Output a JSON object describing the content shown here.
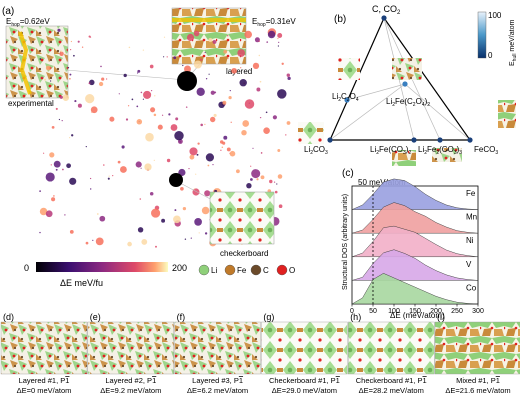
{
  "panel_a": {
    "label": "(a)",
    "experimental_ehop": "E",
    "experimental_ehop_sub": "hop",
    "experimental_ehop_val": "=0.62eV",
    "experimental_label": "experimental",
    "layered_ehop": "E",
    "layered_ehop_sub": "hop",
    "layered_ehop_val": "=0.31eV",
    "layered_label": "layered",
    "checkerboard_label": "checkerboard",
    "colorbar_min": "0",
    "colorbar_max": "200",
    "colorbar_title": "ΔE meV/fu",
    "legend": [
      {
        "sym": "Li",
        "color": "#8fd07a"
      },
      {
        "sym": "Fe",
        "color": "#c07a2a"
      },
      {
        "sym": "C",
        "color": "#6b4a2a"
      },
      {
        "sym": "O",
        "color": "#e02020"
      }
    ]
  },
  "panel_b": {
    "label": "(b)",
    "top": "C, CO",
    "top_sub": "2",
    "left": "Li",
    "left_sub": "2",
    "left_tail": "CO",
    "left_sub2": "3",
    "right": "FeCO",
    "right_sub": "3",
    "li2c2o4": "Li",
    "li2c2o4_a": "2",
    "li2c2o4_b": "C",
    "li2c2o4_c": "2",
    "li2c2o4_d": "O",
    "li2c2o4_e": "4",
    "li2fec2o4": "Li",
    "li2fec2o4_a": "2",
    "li2fec2o4_b": "Fe(C",
    "li2fec2o4_c": "2",
    "li2fec2o4_d": "O",
    "li2fec2o4_e": "4",
    "li2fec2o4_f": ")",
    "li2fec2o4_g": "2",
    "li2feco3_2": "Li",
    "li2feco3_2_a": "2",
    "li2feco3_2_b": "Fe(CO",
    "li2feco3_2_c": "3",
    "li2feco3_2_d": ")",
    "li2feco3_2_e": "2",
    "li2fe2co3_3": "Li",
    "li2fe2co3_3_a": "2",
    "li2fe2co3_3_b": "Fe",
    "li2fe2co3_3_c": "2",
    "li2fe2co3_3_d": "(CO",
    "li2fe2co3_3_e": "3",
    "li2fe2co3_3_f": ")",
    "li2fe2co3_3_g": "3",
    "ehull_max": "100",
    "ehull_min": "0",
    "ehull_title": "E",
    "ehull_sub": "hull",
    "ehull_unit": " meV/atom"
  },
  "panel_c": {
    "label": "(c)",
    "marker_label": "50 meV/atom",
    "ylabel": "Structural DOS (arbitrary units)",
    "xlabel": "ΔE (meV/atom)",
    "ticks": [
      "0",
      "50",
      "100",
      "150",
      "200",
      "250",
      "300"
    ]
  },
  "chart_data": {
    "type": "area",
    "xlabel": "ΔE (meV/atom)",
    "ylabel": "Structural DOS (arbitrary units)",
    "xlim": [
      0,
      300
    ],
    "annotation": {
      "x": 50,
      "text": "50 meV/atom"
    },
    "x": [
      0,
      25,
      50,
      75,
      100,
      125,
      150,
      175,
      200,
      225,
      250,
      275,
      300
    ],
    "series": [
      {
        "name": "Fe",
        "color": "#9aa0e0",
        "values": [
          0,
          0.15,
          0.5,
          0.9,
          1.0,
          0.95,
          0.75,
          0.5,
          0.3,
          0.15,
          0.06,
          0.02,
          0
        ]
      },
      {
        "name": "Mn",
        "color": "#f0a0a0",
        "values": [
          0,
          0.1,
          0.45,
          0.85,
          1.0,
          0.9,
          0.7,
          0.55,
          0.35,
          0.2,
          0.08,
          0.03,
          0
        ]
      },
      {
        "name": "Ni",
        "color": "#f2b0c8",
        "values": [
          0,
          0.12,
          0.5,
          0.95,
          1.0,
          0.9,
          0.8,
          0.6,
          0.4,
          0.22,
          0.1,
          0.04,
          0
        ]
      },
      {
        "name": "V",
        "color": "#d8a8e8",
        "values": [
          0,
          0.1,
          0.55,
          0.9,
          1.0,
          0.88,
          0.72,
          0.5,
          0.32,
          0.18,
          0.08,
          0.03,
          0
        ]
      },
      {
        "name": "Co",
        "color": "#a8d8a0",
        "values": [
          0,
          0.2,
          0.8,
          1.0,
          0.85,
          0.7,
          0.55,
          0.4,
          0.25,
          0.14,
          0.06,
          0.02,
          0
        ]
      }
    ]
  },
  "panels_bottom": [
    {
      "label": "(d)",
      "name": "Layered #1, P",
      "bar": "1",
      "energy": "ΔE=0 meV/atom"
    },
    {
      "label": "(e)",
      "name": "Layered #2, P",
      "bar": "1",
      "energy": "ΔE=9.2 meV/atom"
    },
    {
      "label": "(f)",
      "name": "Layered #3, P",
      "bar": "1",
      "energy": "ΔE=6.2 meV/atom"
    },
    {
      "label": "(g)",
      "name": "Checkerboard #1, P",
      "bar": "1",
      "energy": "ΔE=29.0 meV/atom"
    },
    {
      "label": "(h)",
      "name": "Checkerboard #1, P",
      "bar": "1",
      "energy": "ΔE=28.2 meV/atom"
    },
    {
      "label": "(i)",
      "name": "Mixed #1, P",
      "bar": "1",
      "energy": "ΔE=21.6 meV/atom"
    }
  ]
}
